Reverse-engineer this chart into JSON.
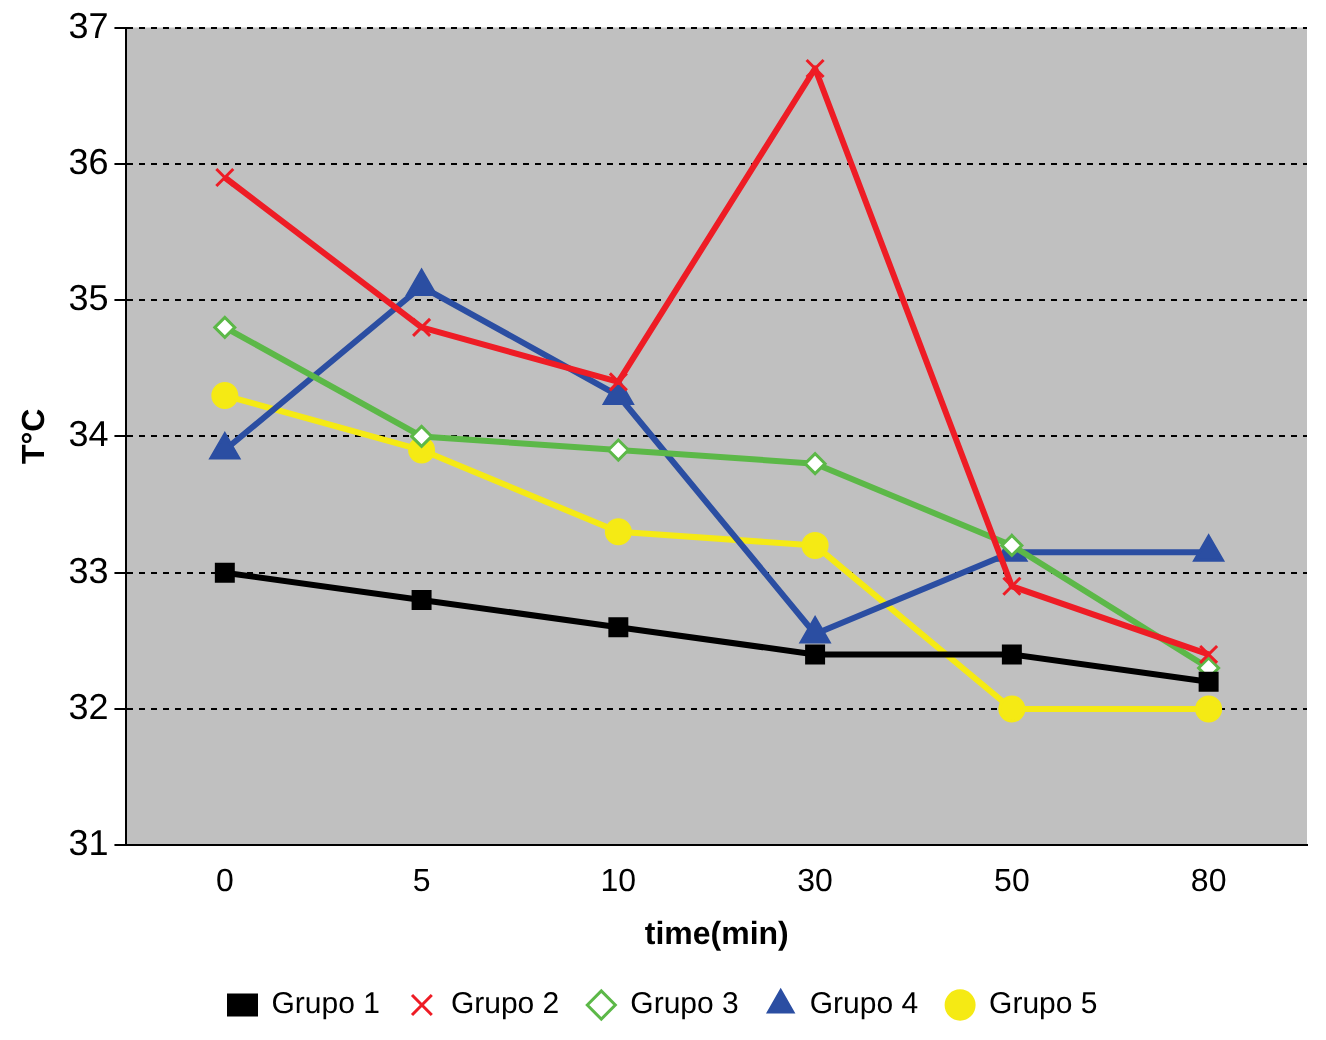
{
  "chart_data": {
    "type": "line",
    "xlabel": "time(min)",
    "ylabel": "T°C",
    "categories": [
      "0",
      "5",
      "10",
      "30",
      "50",
      "80"
    ],
    "ylim": [
      31,
      37
    ],
    "yticks": [
      31,
      32,
      33,
      34,
      35,
      36,
      37
    ],
    "grid": "y",
    "legend": "bottom",
    "line_style": "solid",
    "series": [
      {
        "name": "Grupo 1",
        "color": "#000000",
        "marker": "square",
        "values": [
          33.0,
          32.8,
          32.6,
          32.4,
          32.4,
          32.2
        ]
      },
      {
        "name": "Grupo 2",
        "color": "#ee1c25",
        "marker": "cross",
        "values": [
          35.9,
          34.8,
          34.4,
          36.7,
          32.9,
          32.4
        ]
      },
      {
        "name": "Grupo 3",
        "color": "#5cb848",
        "marker": "diamond",
        "values": [
          34.8,
          34.0,
          33.9,
          33.8,
          33.2,
          32.3
        ]
      },
      {
        "name": "Grupo 4",
        "color": "#2b4ea2",
        "marker": "triangle",
        "values": [
          33.9,
          35.1,
          34.3,
          32.55,
          33.15,
          33.15
        ]
      },
      {
        "name": "Grupo 5",
        "color": "#f5ea14",
        "marker": "circle",
        "values": [
          34.3,
          33.9,
          33.3,
          33.2,
          32.0,
          32.0
        ]
      }
    ]
  }
}
